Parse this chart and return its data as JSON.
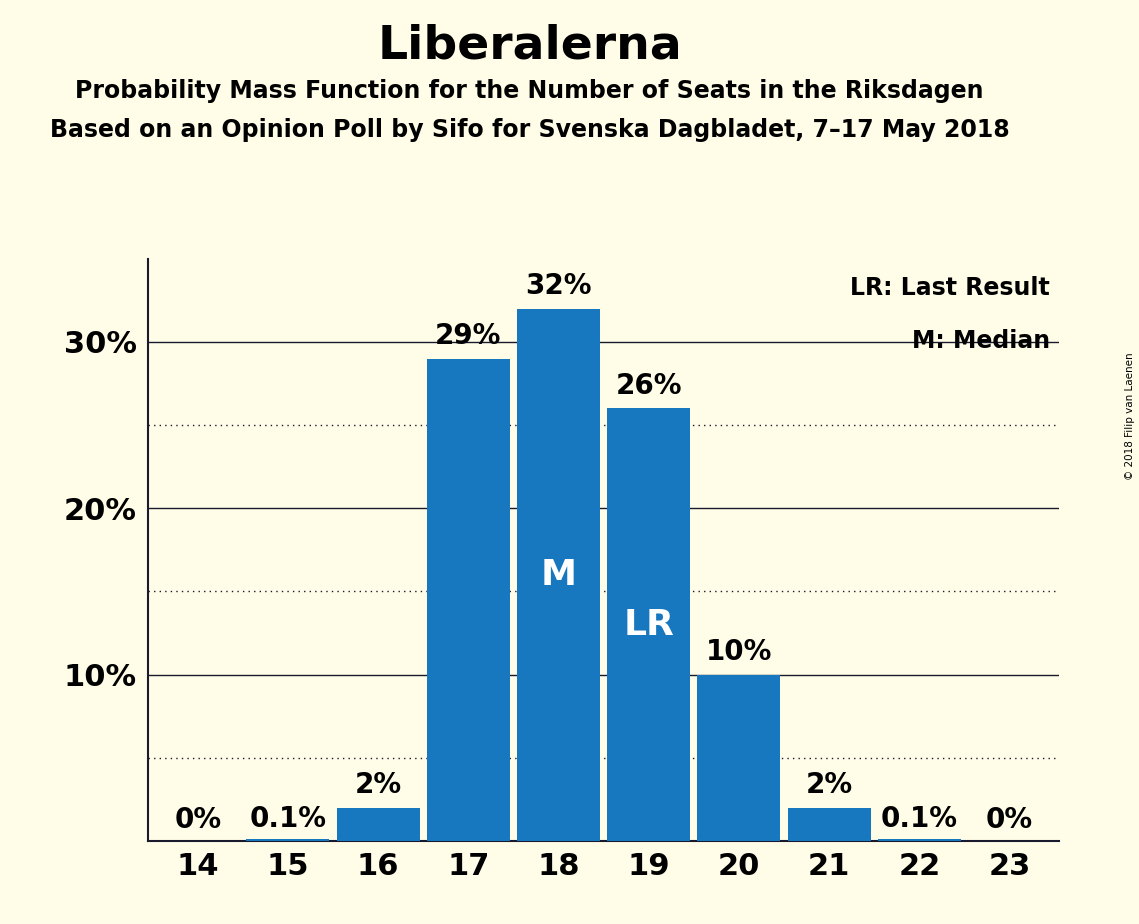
{
  "title": "Liberalerna",
  "subtitle1": "Probability Mass Function for the Number of Seats in the Riksdagen",
  "subtitle2": "Based on an Opinion Poll by Sifo for Svenska Dagbladet, 7–17 May 2018",
  "copyright": "© 2018 Filip van Laenen",
  "seats": [
    14,
    15,
    16,
    17,
    18,
    19,
    20,
    21,
    22,
    23
  ],
  "values": [
    0.0,
    0.1,
    2.0,
    29.0,
    32.0,
    26.0,
    10.0,
    2.0,
    0.1,
    0.0
  ],
  "bar_color": "#1878bf",
  "bar_labels": [
    "0%",
    "0.1%",
    "2%",
    "29%",
    "32%",
    "26%",
    "10%",
    "2%",
    "0.1%",
    "0%"
  ],
  "median_seat": 18,
  "lr_seat": 19,
  "background_color": "#fffde8",
  "ylim": [
    0,
    35
  ],
  "yticks_solid": [
    10,
    20,
    30
  ],
  "yticks_dotted": [
    5,
    15,
    25
  ],
  "ytick_labels": [
    "10%",
    "20%",
    "30%"
  ],
  "title_fontsize": 34,
  "subtitle_fontsize": 17,
  "tick_fontsize": 22,
  "legend_fontsize": 17,
  "bar_label_fontsize": 20,
  "inbar_label_fontsize": 26
}
